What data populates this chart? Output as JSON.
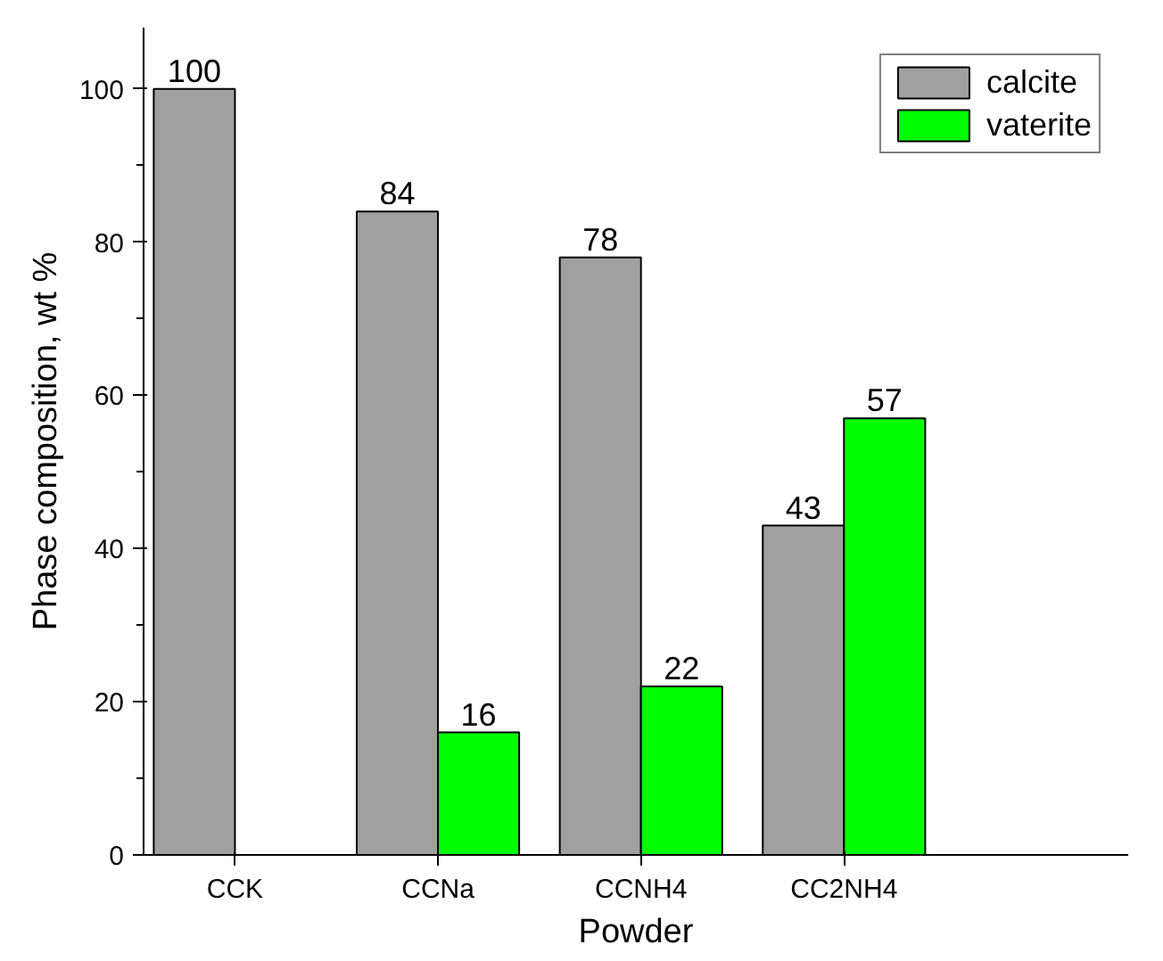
{
  "chart_data": {
    "type": "bar",
    "xlabel": "Powder",
    "ylabel": "Phase composition, wt %",
    "categories": [
      "CCK",
      "CCNa",
      "CCNH4",
      "CC2NH4"
    ],
    "series": [
      {
        "name": "calcite",
        "color": "#a0a0a0",
        "values": [
          100,
          84,
          78,
          43
        ],
        "value_labels": [
          "100",
          "84",
          "78",
          "43"
        ]
      },
      {
        "name": "vaterite",
        "color": "#00ff00",
        "values": [
          null,
          16,
          22,
          57
        ],
        "value_labels": [
          null,
          "16",
          "22",
          "57"
        ]
      }
    ],
    "ylim": [
      0,
      108
    ],
    "yticks": [
      0,
      20,
      40,
      60,
      80,
      100
    ],
    "grid": false,
    "legend": "top right"
  }
}
